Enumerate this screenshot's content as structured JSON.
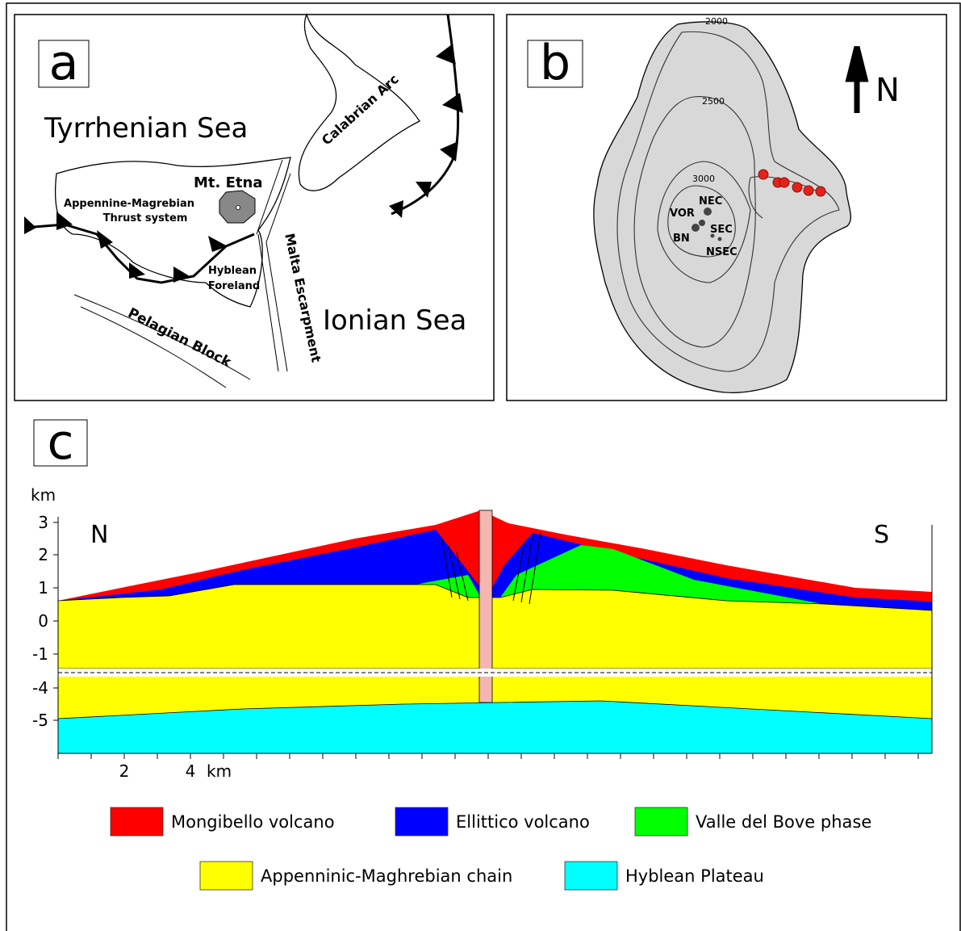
{
  "panel_a": {
    "label": "a",
    "tyrrhenian": "Tyrrhenian Sea",
    "calabrian": "Calabrian Arc",
    "etna": "Mt. Etna",
    "thrust": [
      "Appennine-Magrebian",
      "Thrust system"
    ],
    "hyblean": [
      "Hyblean",
      "Foreland"
    ],
    "malta": "Malta Escarpment",
    "ionian": "Ionian Sea",
    "pelagian": "Pelagian Block"
  },
  "panel_b": {
    "label": "b",
    "contours": [
      "2000",
      "2500",
      "3000"
    ],
    "north": "N",
    "craters": [
      "NEC",
      "VOR",
      "SEC",
      "BN",
      "NSEC"
    ]
  },
  "panel_c": {
    "label": "c",
    "y_unit": "km",
    "y_ticks": [
      "3",
      "2",
      "1",
      "0",
      "-1",
      "-4",
      "-5"
    ],
    "north": "N",
    "south": "S",
    "x_ticks": [
      "2",
      "4"
    ],
    "x_unit": "km",
    "legend": [
      "Mongibello volcano",
      "Ellittico volcano",
      "Valle del Bove phase",
      "Appenninic-Maghrebian chain",
      "Hyblean Plateau"
    ]
  }
}
